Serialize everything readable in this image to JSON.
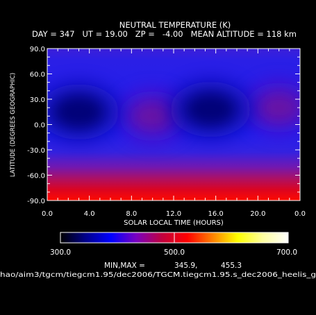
{
  "chart_data": {
    "type": "heatmap",
    "title": "NEUTRAL TEMPERATURE (K)",
    "subtitle": "DAY = 347   UT = 19.00   ZP =   -4.00   MEAN ALTITUDE = 118 km",
    "xlabel": "SOLAR LOCAL TIME (HOURS)",
    "ylabel": "LATITUDE (DEGREES GEOGRAPHIC)",
    "xlim": [
      0,
      24
    ],
    "ylim": [
      -90,
      90
    ],
    "x_ticks": [
      "0.0",
      "4.0",
      "8.0",
      "12.0",
      "16.0",
      "20.0",
      "0.0"
    ],
    "y_ticks": [
      "90.0",
      "60.0",
      "30.0",
      "0.0",
      "-30.0",
      "-60.0",
      "-90.0"
    ],
    "colorbar": {
      "min": 300,
      "max": 700,
      "tick_labels": [
        "300.0",
        "500.0",
        "700.0"
      ],
      "colors": [
        "#000000",
        "#00008b",
        "#0000ff",
        "#7a00c0",
        "#c00040",
        "#ff0000",
        "#ff8000",
        "#ffff00",
        "#ffffa0",
        "#ffffff"
      ]
    },
    "field_features": {
      "background_K": 385,
      "high_latitude_south": "temperature rises toward ~455 K near -90",
      "minima": [
        {
          "local_time_h": 3.0,
          "latitude": 15,
          "value_K": 346
        },
        {
          "local_time_h": 15.5,
          "latitude": 18,
          "value_K": 350
        }
      ],
      "secondary_maxima": [
        {
          "local_time_h": 10.0,
          "latitude": 10,
          "value_K": 400
        },
        {
          "local_time_h": 22.0,
          "latitude": 20,
          "value_K": 402
        }
      ]
    },
    "min_value": 345.9,
    "max_value": 455.3
  },
  "footer": {
    "minmax_label": "MIN,MAX =",
    "min_text": "345.9,",
    "max_text": "455.3",
    "path": "hao/aim3/tgcm/tiegcm1.95/dec2006/TGCM.tiegcm1.95.s_dec2006_heelis_g"
  }
}
